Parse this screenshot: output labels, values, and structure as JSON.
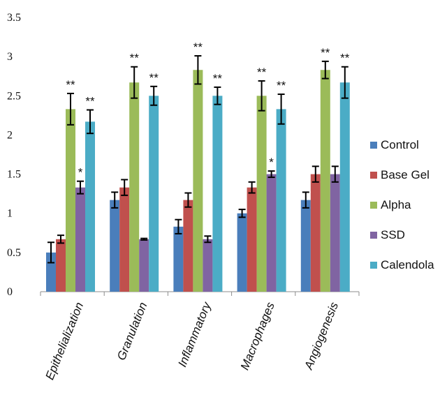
{
  "chart_data": {
    "type": "bar",
    "title": "",
    "xlabel": "",
    "ylabel": "",
    "ylim": [
      0,
      3.5
    ],
    "yticks": [
      "0",
      "0.5",
      "1",
      "1.5",
      "2",
      "2.5",
      "3",
      "3.5"
    ],
    "grid": false,
    "legend_position": "right",
    "categories": [
      "Epithelialization",
      "Granulation",
      "Inflammatory",
      "Macrophages",
      "Angiogenesis"
    ],
    "series": [
      {
        "name": "Control",
        "color": "#4a7ebb",
        "values": [
          0.5,
          1.17,
          0.83,
          1.0,
          1.17
        ],
        "errors": [
          0.13,
          0.1,
          0.09,
          0.05,
          0.1
        ],
        "significance": [
          "",
          "",
          "",
          "",
          ""
        ]
      },
      {
        "name": "Base Gel",
        "color": "#c0504d",
        "values": [
          0.67,
          1.33,
          1.17,
          1.33,
          1.5
        ],
        "errors": [
          0.05,
          0.1,
          0.09,
          0.07,
          0.1
        ],
        "significance": [
          "",
          "",
          "",
          "",
          ""
        ]
      },
      {
        "name": "Alpha",
        "color": "#9bbb59",
        "values": [
          2.33,
          2.67,
          2.83,
          2.5,
          2.83
        ],
        "errors": [
          0.2,
          0.2,
          0.18,
          0.19,
          0.11
        ],
        "significance": [
          "**",
          "**",
          "**",
          "**",
          "**"
        ]
      },
      {
        "name": "SSD",
        "color": "#8064a2",
        "values": [
          1.33,
          0.67,
          0.67,
          1.5,
          1.5
        ],
        "errors": [
          0.08,
          0.01,
          0.04,
          0.04,
          0.1
        ],
        "significance": [
          "*",
          "",
          "",
          "*",
          ""
        ]
      },
      {
        "name": "Calendola",
        "color": "#4bacc6",
        "values": [
          2.17,
          2.5,
          2.5,
          2.33,
          2.67
        ],
        "errors": [
          0.15,
          0.12,
          0.11,
          0.19,
          0.2
        ],
        "significance": [
          "**",
          "**",
          "**",
          "**",
          "**"
        ]
      }
    ]
  }
}
